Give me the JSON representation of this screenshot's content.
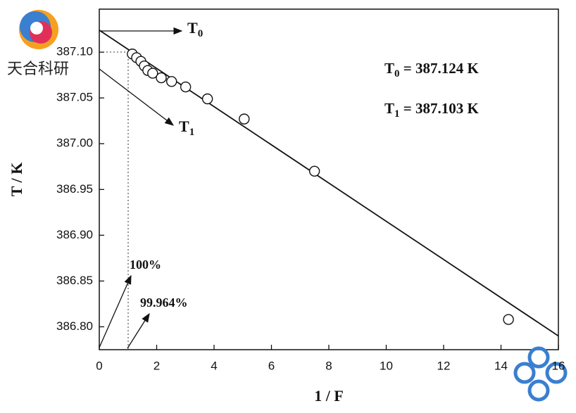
{
  "chart_data": {
    "type": "scatter",
    "xlabel": "1 / F",
    "ylabel": "T / K",
    "x": [
      1.15,
      1.3,
      1.45,
      1.57,
      1.69,
      1.86,
      2.16,
      2.52,
      3.01,
      3.77,
      5.05,
      7.5,
      14.26
    ],
    "values": [
      387.098,
      387.094,
      387.09,
      387.085,
      387.08,
      387.077,
      387.072,
      387.068,
      387.062,
      387.049,
      387.027,
      386.97,
      386.808
    ],
    "fit_line": {
      "x": [
        0,
        16
      ],
      "values": [
        387.124,
        386.79
      ]
    },
    "xlim": [
      0,
      16
    ],
    "xticks": [
      0,
      2,
      4,
      6,
      8,
      10,
      12,
      14,
      16
    ],
    "ylim": [
      386.775,
      387.147
    ],
    "yticks": [
      {
        "value": 386.8,
        "label": "386.80"
      },
      386.85,
      {
        "value": 386.9,
        "label": "386.90"
      },
      386.95,
      {
        "value": 387,
        "label": "387.00"
      },
      387.05,
      {
        "value": 387.1,
        "label": "387.10"
      }
    ],
    "annotations": {
      "t0_arrow": {
        "main": "T",
        "sub": "0"
      },
      "t1_arrow": {
        "main": "T",
        "sub": "1"
      },
      "t0_value": {
        "main": "T",
        "sub": "0",
        "rest": " = 387.124 K"
      },
      "t1_value": {
        "main": "T",
        "sub": "1",
        "rest": " = 387.103 K"
      },
      "pct_100": "100%",
      "pct_99": "99.964%"
    },
    "watermark": "天合科研"
  }
}
